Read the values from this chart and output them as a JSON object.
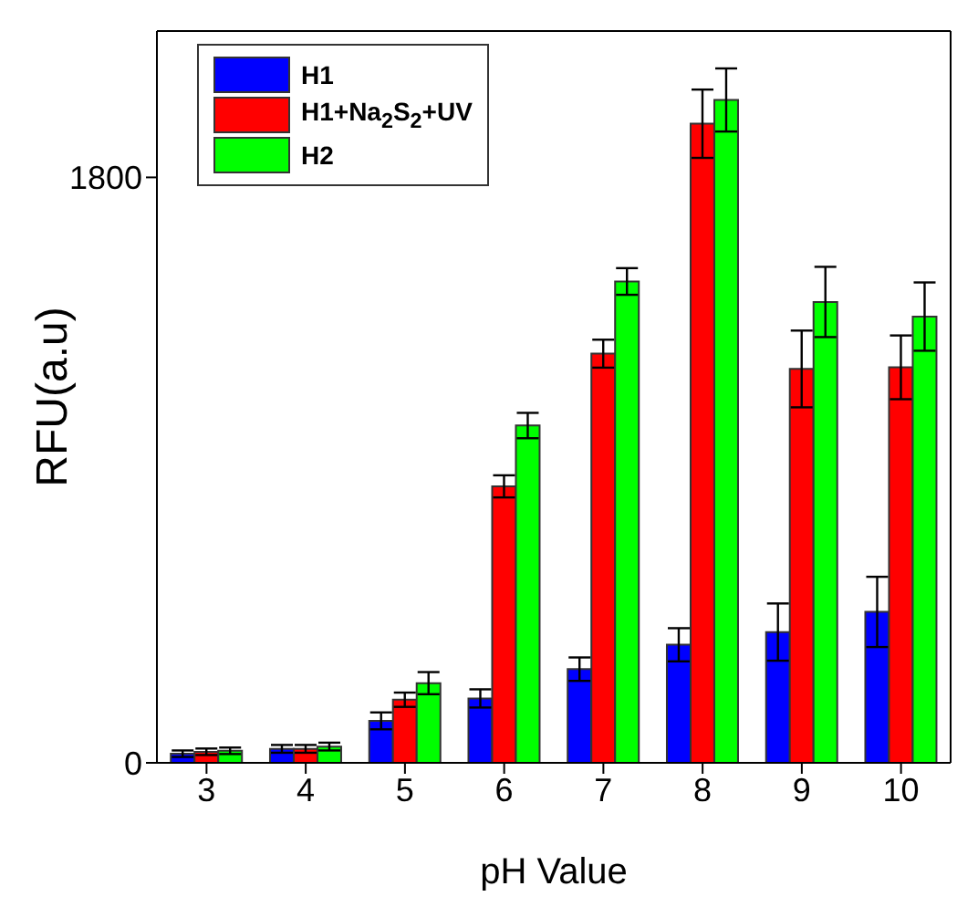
{
  "chart_data": {
    "type": "bar",
    "xlabel": "pH Value",
    "ylabel": "RFU(a.u)",
    "categories": [
      "3",
      "4",
      "5",
      "6",
      "7",
      "8",
      "9",
      "10"
    ],
    "series": [
      {
        "name": "H1",
        "color": "#0000ff",
        "values": [
          28,
          43,
          129,
          198,
          288,
          363,
          402,
          464
        ],
        "errors": [
          10,
          12,
          26,
          28,
          36,
          51,
          88,
          108
        ]
      },
      {
        "name": "H1+Na$_{2}$S$_{2}$+UV",
        "color": "#ff0000",
        "values": [
          34,
          43,
          194,
          850,
          1258,
          1965,
          1211,
          1216
        ],
        "errors": [
          10,
          12,
          22,
          34,
          43,
          105,
          118,
          98
        ]
      },
      {
        "name": "H2",
        "color": "#00ff00",
        "values": [
          37,
          50,
          245,
          1037,
          1480,
          2038,
          1417,
          1372
        ],
        "errors": [
          10,
          12,
          34,
          39,
          41,
          97,
          108,
          105
        ]
      }
    ],
    "ylim": [
      0,
      2250
    ],
    "yticks": [
      0,
      1800
    ],
    "grid": false,
    "legend": "top left"
  }
}
